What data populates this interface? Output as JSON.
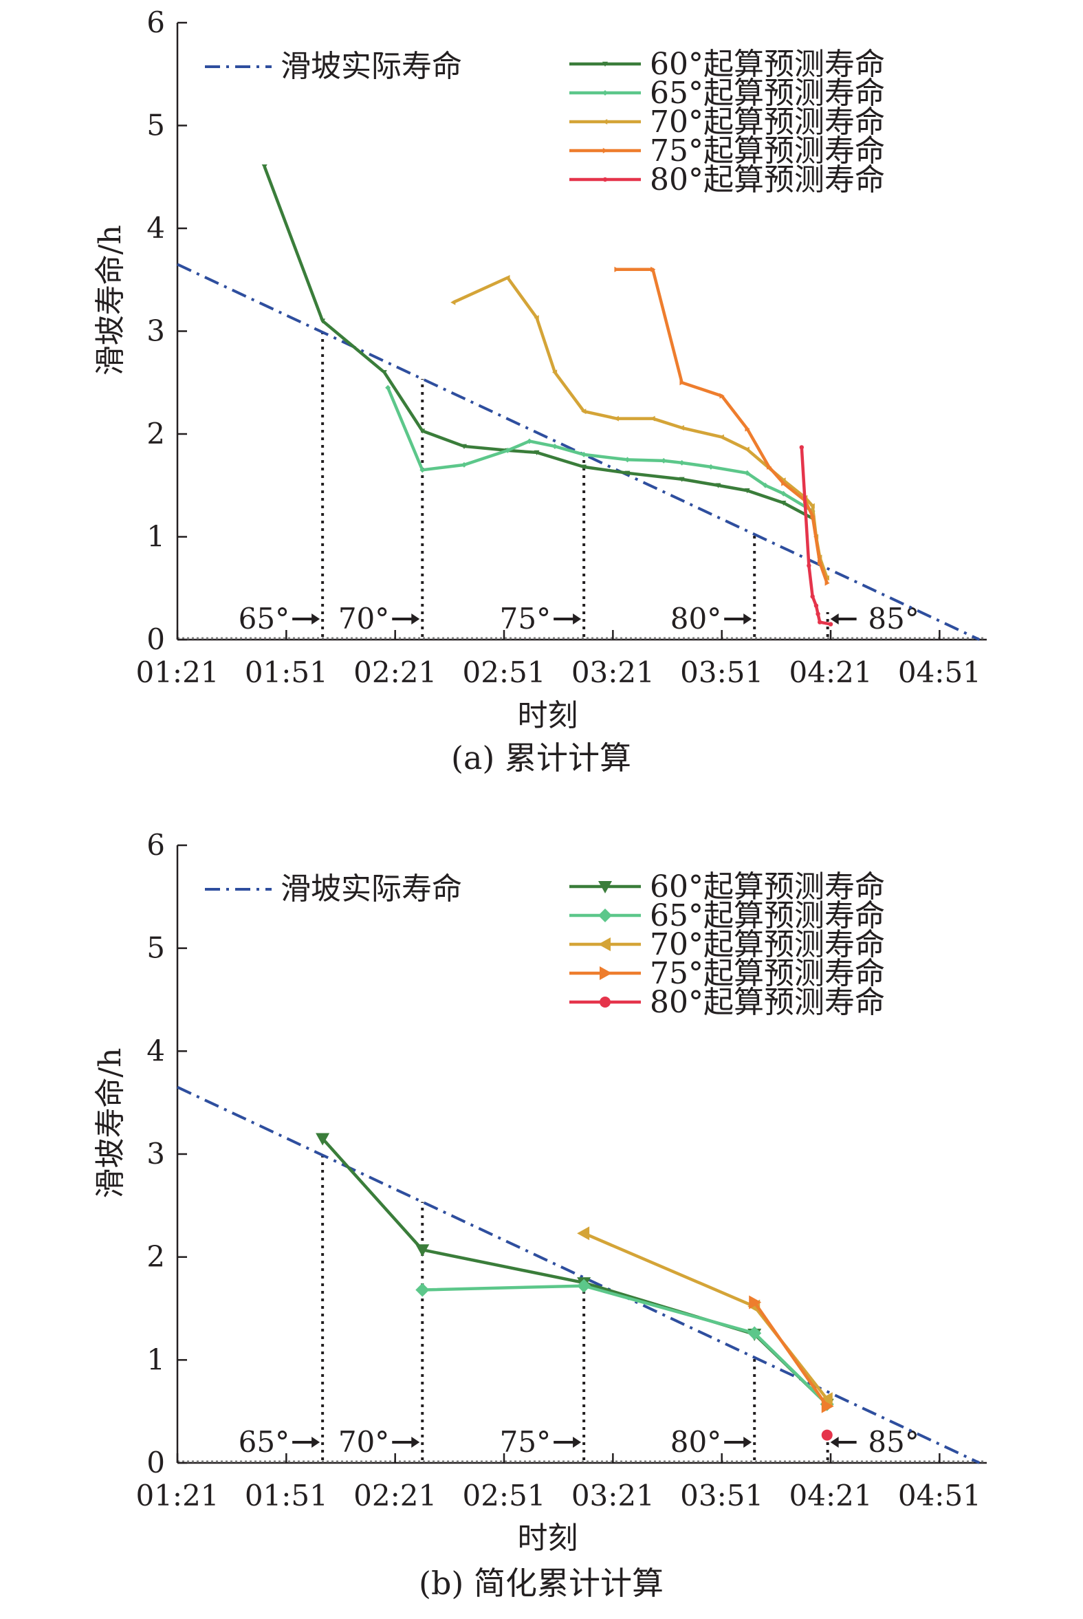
{
  "chart_data": [
    {
      "type": "line",
      "caption": "(a) 累计计算",
      "xlabel": "时刻",
      "ylabel": "滑坡寿命/h",
      "x_ticks": [
        "01:21",
        "01:51",
        "02:21",
        "02:51",
        "03:21",
        "03:51",
        "04:21",
        "04:51"
      ],
      "x_tick_minutes": [
        81,
        111,
        141,
        171,
        201,
        231,
        261,
        291
      ],
      "xlim_minutes": [
        81,
        304
      ],
      "ylim": [
        0,
        6
      ],
      "y_ticks": [
        "0",
        "1",
        "2",
        "3",
        "4",
        "5",
        "6"
      ],
      "legend_position": "top",
      "angle_markers": [
        {
          "label": "65°",
          "x": 121,
          "dir": "right"
        },
        {
          "label": "70°",
          "x": 148.5,
          "dir": "right"
        },
        {
          "label": "75°",
          "x": 193,
          "dir": "right"
        },
        {
          "label": "80°",
          "x": 240,
          "dir": "right"
        },
        {
          "label": "85°",
          "x": 256,
          "dir": "left"
        }
      ],
      "series": [
        {
          "name": "滑坡实际寿命",
          "color": "#2e4e9e",
          "style": "dashdot",
          "marker": "none",
          "x": [
            81,
            302
          ],
          "y": [
            3.65,
            0
          ]
        },
        {
          "name": "60°起算预测寿命",
          "color": "#3a7d3a",
          "style": "solid",
          "marker": "tri-down",
          "x": [
            105,
            121,
            138,
            148.5,
            160,
            172,
            180,
            193,
            205,
            220,
            230,
            238,
            248,
            256
          ],
          "y": [
            4.6,
            3.1,
            2.6,
            2.03,
            1.88,
            1.84,
            1.82,
            1.68,
            1.62,
            1.56,
            1.5,
            1.45,
            1.33,
            1.18
          ]
        },
        {
          "name": "65°起算预测寿命",
          "color": "#5cc78a",
          "style": "solid",
          "marker": "diamond",
          "x": [
            139,
            148.5,
            160,
            172,
            178,
            185,
            193,
            205,
            215,
            220,
            228,
            238,
            243,
            248,
            256
          ],
          "y": [
            2.45,
            1.65,
            1.7,
            1.84,
            1.93,
            1.88,
            1.8,
            1.75,
            1.74,
            1.72,
            1.68,
            1.62,
            1.5,
            1.42,
            1.25
          ]
        },
        {
          "name": "70°起算预测寿命",
          "color": "#d4a437",
          "style": "solid",
          "marker": "tri-left",
          "x": [
            157,
            172,
            180,
            185,
            193,
            202,
            212,
            220,
            231,
            238,
            248,
            254,
            256,
            257,
            258,
            260
          ],
          "y": [
            3.28,
            3.52,
            3.13,
            2.6,
            2.22,
            2.15,
            2.15,
            2.06,
            1.97,
            1.85,
            1.55,
            1.38,
            1.3,
            1.0,
            0.8,
            0.6
          ]
        },
        {
          "name": "75°起算预测寿命",
          "color": "#ee7d2d",
          "style": "solid",
          "marker": "tri-right",
          "x": [
            202,
            212,
            220,
            231,
            238,
            244,
            248,
            254,
            256,
            258,
            260
          ],
          "y": [
            3.6,
            3.6,
            2.5,
            2.37,
            2.05,
            1.68,
            1.52,
            1.35,
            1.2,
            0.75,
            0.55
          ]
        },
        {
          "name": "80°起算预测寿命",
          "color": "#e5344b",
          "style": "solid",
          "marker": "circle",
          "x": [
            253,
            255,
            256,
            257,
            257.5,
            258,
            261
          ],
          "y": [
            1.87,
            0.72,
            0.42,
            0.33,
            0.25,
            0.17,
            0.15
          ]
        }
      ]
    },
    {
      "type": "line",
      "caption": "(b) 简化累计计算",
      "xlabel": "时刻",
      "ylabel": "滑坡寿命/h",
      "x_ticks": [
        "01:21",
        "01:51",
        "02:21",
        "02:51",
        "03:21",
        "03:51",
        "04:21",
        "04:51"
      ],
      "x_tick_minutes": [
        81,
        111,
        141,
        171,
        201,
        231,
        261,
        291
      ],
      "xlim_minutes": [
        81,
        304
      ],
      "ylim": [
        0,
        6
      ],
      "y_ticks": [
        "0",
        "1",
        "2",
        "3",
        "4",
        "5",
        "6"
      ],
      "legend_position": "top",
      "angle_markers": [
        {
          "label": "65°",
          "x": 121,
          "dir": "right"
        },
        {
          "label": "70°",
          "x": 148.5,
          "dir": "right"
        },
        {
          "label": "75°",
          "x": 193,
          "dir": "right"
        },
        {
          "label": "80°",
          "x": 240,
          "dir": "right"
        },
        {
          "label": "85°",
          "x": 256,
          "dir": "left"
        }
      ],
      "series": [
        {
          "name": "滑坡实际寿命",
          "color": "#2e4e9e",
          "style": "dashdot",
          "marker": "none",
          "x": [
            81,
            302
          ],
          "y": [
            3.65,
            0
          ]
        },
        {
          "name": "60°起算预测寿命",
          "color": "#3a7d3a",
          "style": "solid",
          "marker": "tri-down",
          "x": [
            121,
            148.5,
            193,
            240,
            260
          ],
          "y": [
            3.15,
            2.07,
            1.75,
            1.25,
            0.57
          ]
        },
        {
          "name": "65°起算预测寿命",
          "color": "#5cc78a",
          "style": "solid",
          "marker": "diamond",
          "x": [
            148.5,
            193,
            240,
            260
          ],
          "y": [
            1.68,
            1.72,
            1.26,
            0.57
          ]
        },
        {
          "name": "70°起算预测寿命",
          "color": "#d4a437",
          "style": "solid",
          "marker": "tri-left",
          "x": [
            193,
            240,
            260
          ],
          "y": [
            2.23,
            1.52,
            0.62
          ]
        },
        {
          "name": "75°起算预测寿命",
          "color": "#ee7d2d",
          "style": "solid",
          "marker": "tri-right",
          "x": [
            240,
            260
          ],
          "y": [
            1.56,
            0.55
          ]
        },
        {
          "name": "80°起算预测寿命",
          "color": "#e5344b",
          "style": "solid",
          "marker": "circle",
          "x": [
            260
          ],
          "y": [
            0.27
          ]
        }
      ]
    }
  ]
}
